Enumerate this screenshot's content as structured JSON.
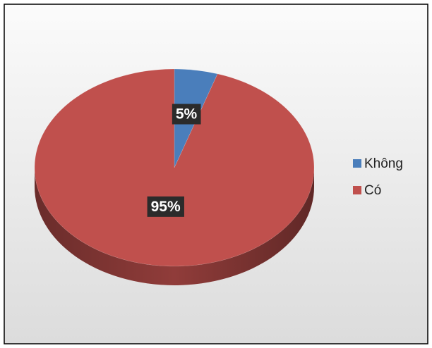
{
  "chart_data": {
    "type": "pie",
    "categories": [
      "Không",
      "Có"
    ],
    "values": [
      5,
      95
    ],
    "value_labels": [
      "5%",
      "95%"
    ],
    "colors": [
      "#4a7ebb",
      "#c0504d"
    ],
    "legend": "right"
  }
}
